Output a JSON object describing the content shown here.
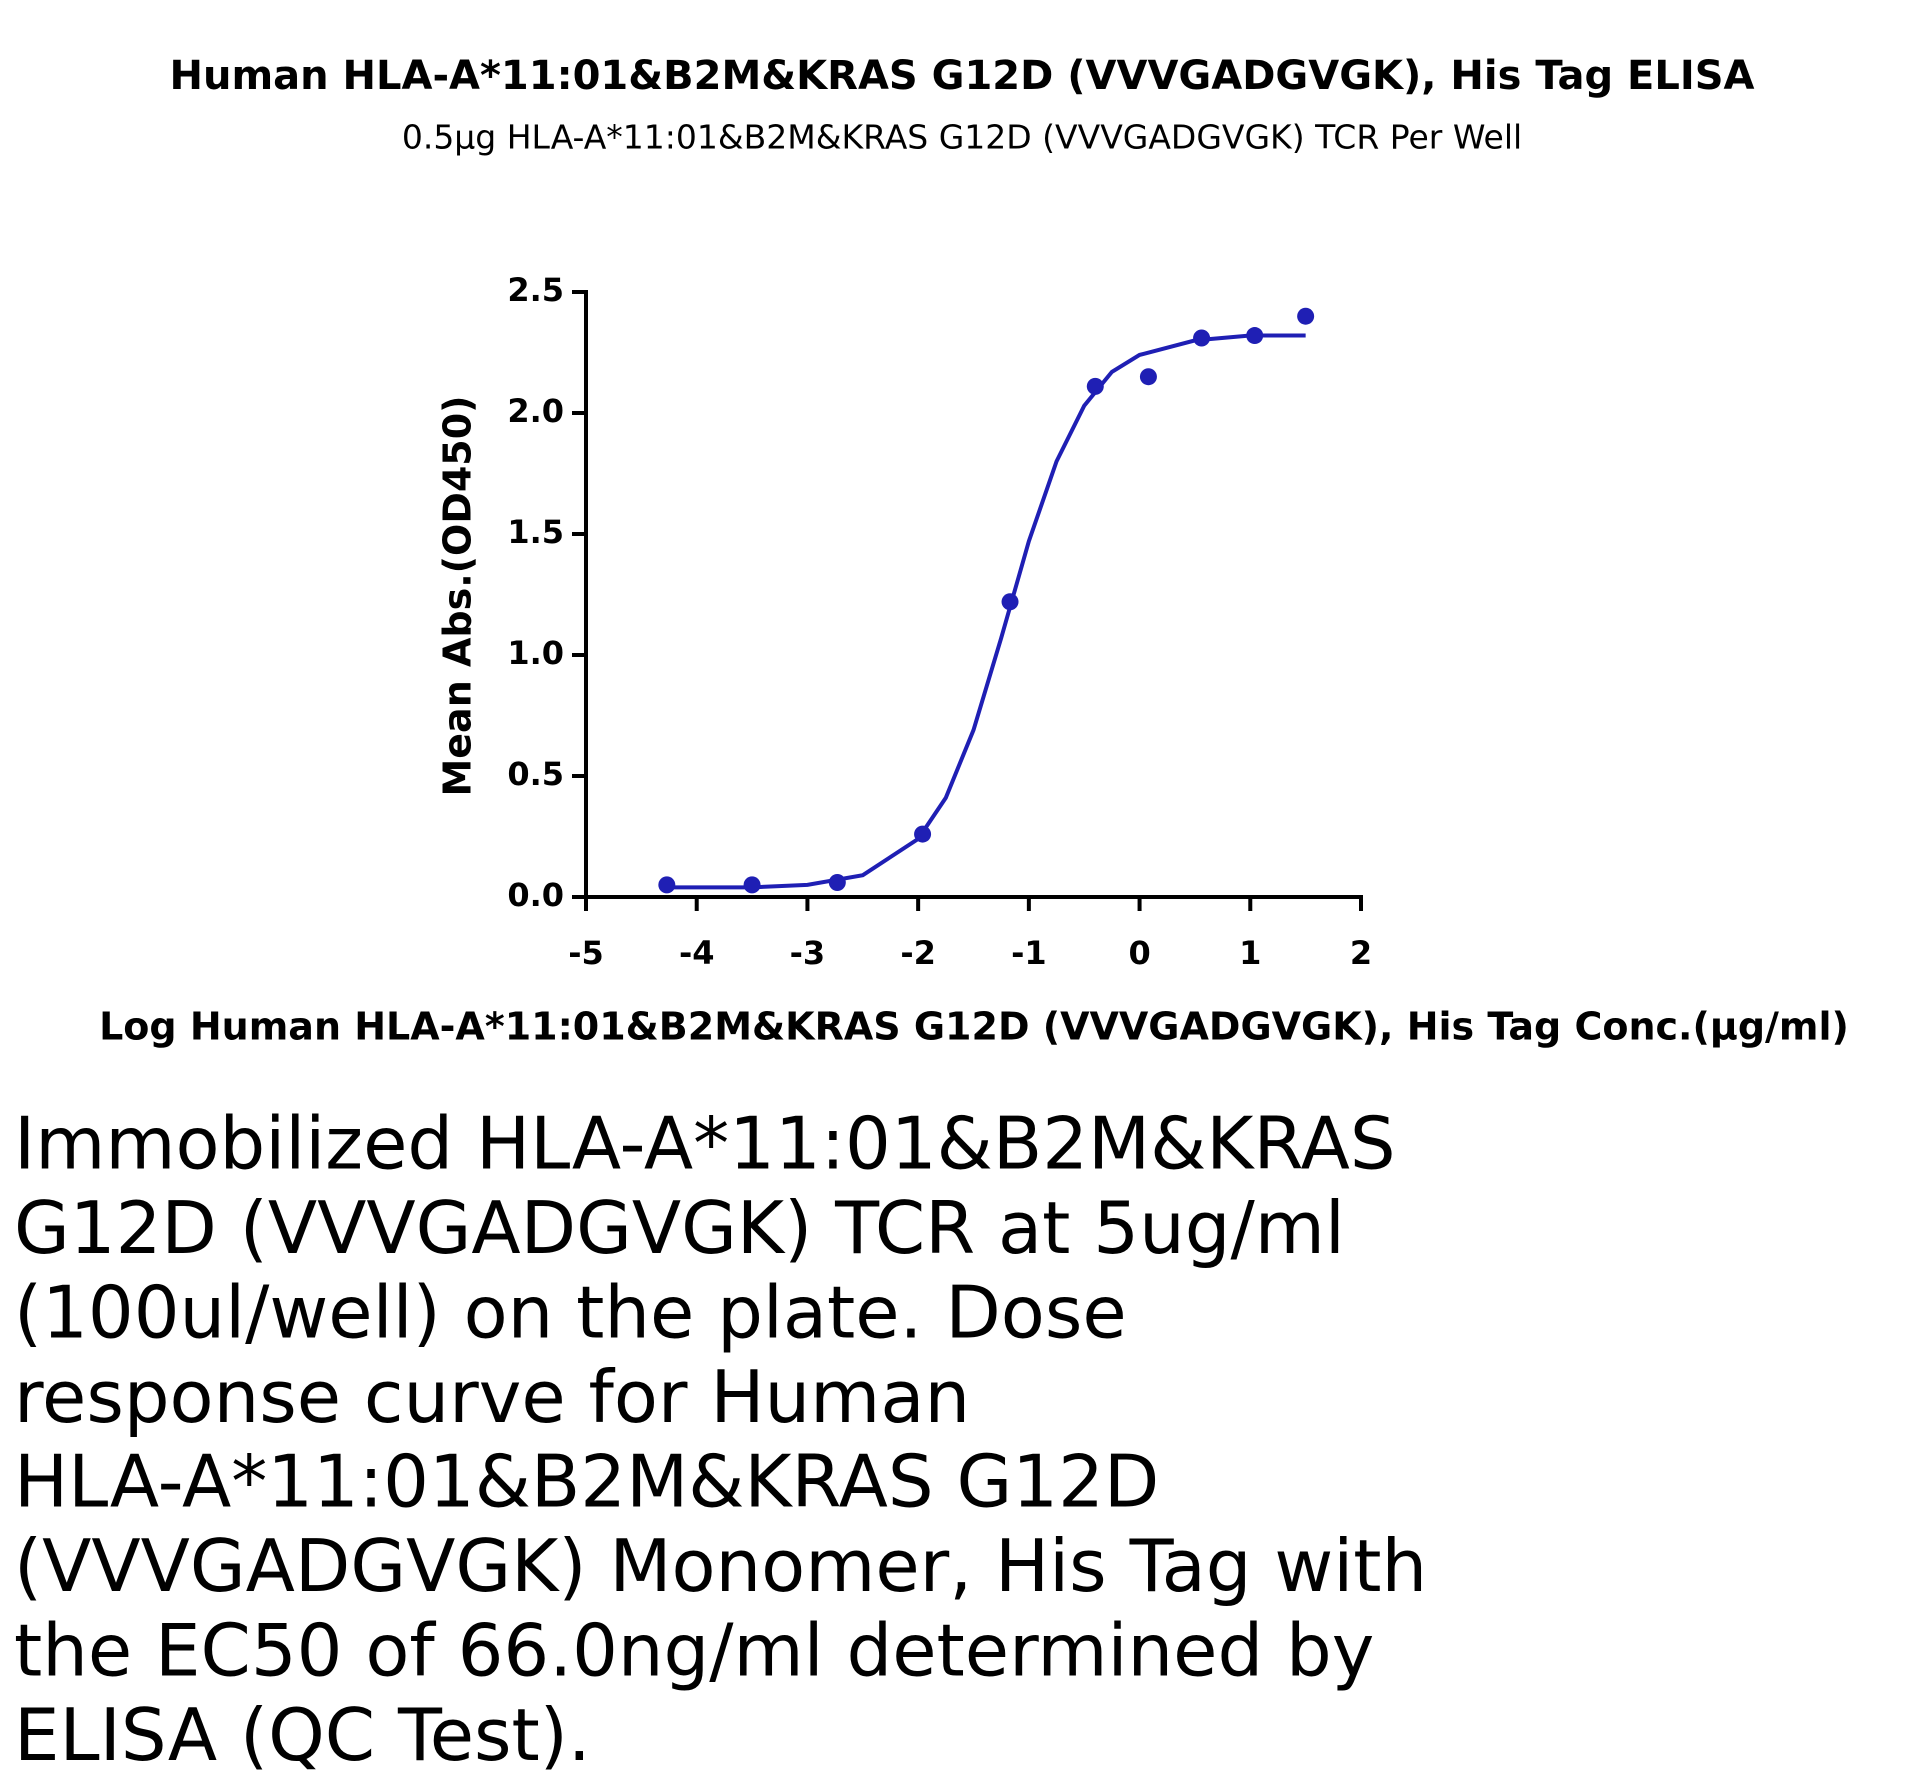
{
  "chart_data": {
    "type": "scatter",
    "title": "Human HLA-A*11:01&B2M&KRAS G12D (VVVGADGVGK), His Tag ELISA",
    "subtitle": "0.5μg HLA-A*11:01&B2M&KRAS G12D (VVVGADGVGK) TCR Per Well",
    "x_label": "Log Human HLA-A*11:01&B2M&KRAS G12D (VVVGADGVGK), His Tag Conc.(μg/ml)",
    "y_label": "Mean Abs.(OD450)",
    "color": "#1f1fb4",
    "x": [
      -4.27,
      -3.5,
      -2.73,
      -1.96,
      -1.17,
      -0.4,
      0.08,
      0.56,
      1.04,
      1.5
    ],
    "values": [
      0.05,
      0.05,
      0.06,
      0.26,
      1.22,
      2.11,
      2.15,
      2.31,
      2.32,
      2.4
    ],
    "fit": {
      "x": [
        -4.27,
        -3.5,
        -3,
        -2.5,
        -2,
        -1.75,
        -1.5,
        -1.25,
        -1,
        -0.75,
        -0.5,
        -0.25,
        0,
        0.5,
        1,
        1.5
      ],
      "values": [
        0.04,
        0.04,
        0.05,
        0.09,
        0.24,
        0.41,
        0.69,
        1.07,
        1.47,
        1.8,
        2.03,
        2.17,
        2.24,
        2.3,
        2.32,
        2.32
      ]
    },
    "xlim": [
      -5,
      2
    ],
    "xticks": [
      -5,
      -4,
      -3,
      -2,
      -1,
      0,
      1,
      2
    ],
    "ylim": [
      0,
      2.5
    ],
    "yticks": [
      {
        "value": 0,
        "label": "0.0"
      },
      0.5,
      {
        "value": 1,
        "label": "1.0"
      },
      1.5,
      {
        "value": 2,
        "label": "2.0"
      },
      2.5
    ]
  },
  "caption": {
    "lines": [
      "Immobilized HLA-A*11:01&B2M&KRAS",
      "G12D (VVVGADGVGK) TCR at 5ug/ml",
      "(100ul/well) on the plate. Dose",
      "response curve for Human",
      "HLA-A*11:01&B2M&KRAS G12D",
      "(VVVGADGVGK) Monomer, His Tag with",
      "the EC50 of 66.0ng/ml determined by",
      "ELISA (QC Test)."
    ]
  }
}
